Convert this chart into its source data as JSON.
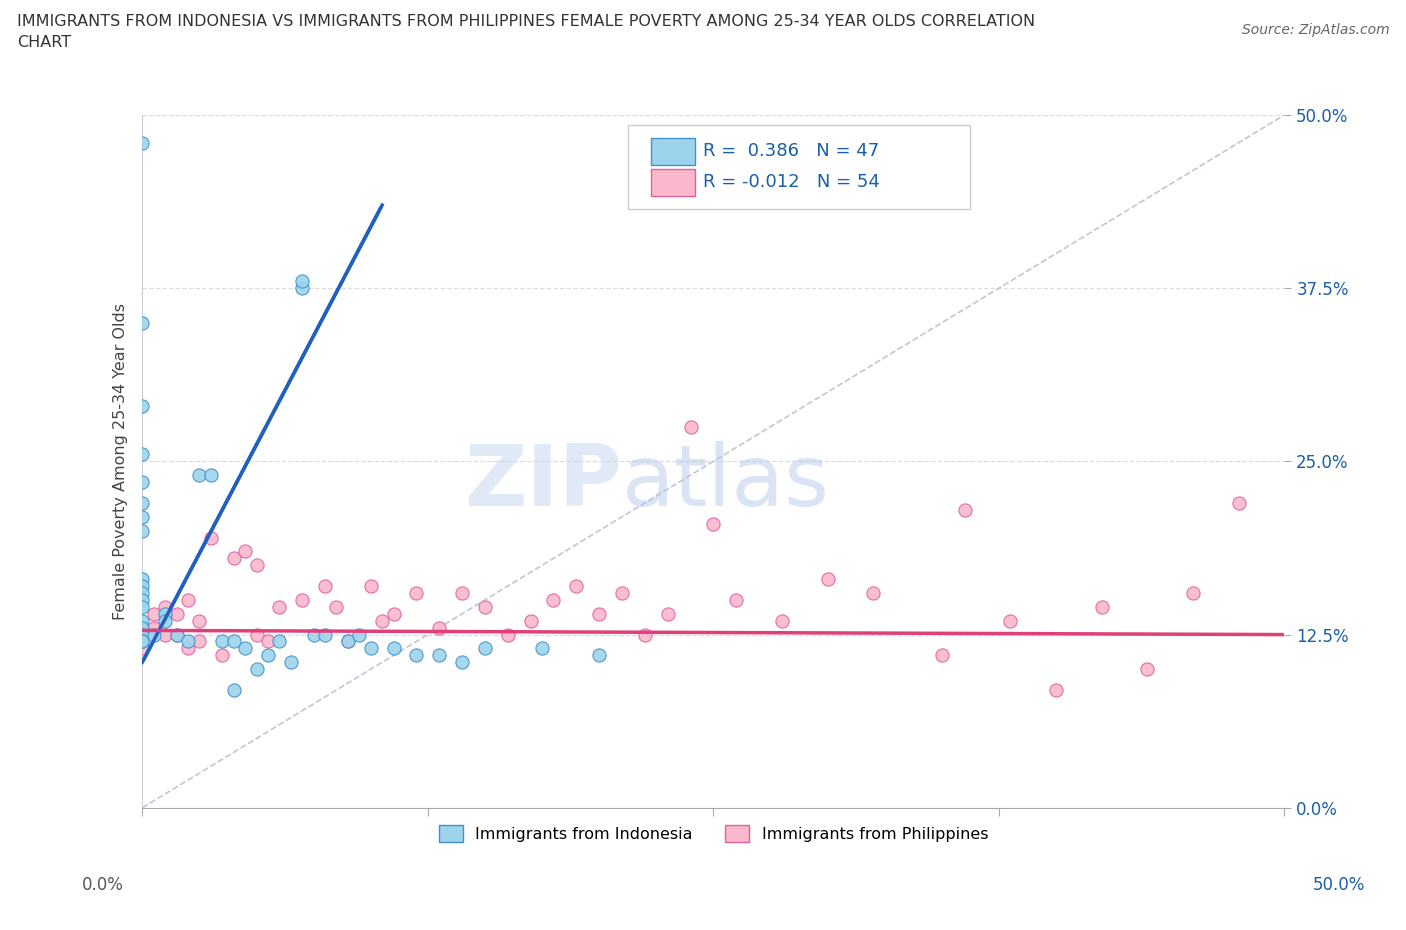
{
  "title": "IMMIGRANTS FROM INDONESIA VS IMMIGRANTS FROM PHILIPPINES FEMALE POVERTY AMONG 25-34 YEAR OLDS CORRELATION\nCHART",
  "source": "Source: ZipAtlas.com",
  "ylabel": "Female Poverty Among 25-34 Year Olds",
  "ytick_vals": [
    0,
    12.5,
    25.0,
    37.5,
    50.0
  ],
  "xlim": [
    0,
    50
  ],
  "ylim": [
    0,
    50
  ],
  "r_indonesia": 0.386,
  "n_indonesia": 47,
  "r_philippines": -0.012,
  "n_philippines": 54,
  "color_indonesia": "#9DD4EC",
  "color_philippines": "#F9B8CC",
  "color_indonesia_line": "#2060C0",
  "color_philippines_line": "#E0407A",
  "watermark_zip": "ZIP",
  "watermark_atlas": "atlas",
  "indo_line_x0": 0.0,
  "indo_line_y0": 10.5,
  "indo_line_x1": 10.5,
  "indo_line_y1": 43.5,
  "phil_line_x0": 0.0,
  "phil_line_y0": 12.8,
  "phil_line_x1": 50.0,
  "phil_line_y1": 12.5,
  "diag_line": true,
  "indonesia_x": [
    0.0,
    0.0,
    0.0,
    0.0,
    0.0,
    0.0,
    0.0,
    0.0,
    0.0,
    0.0,
    0.0,
    0.0,
    0.0,
    0.0,
    0.0,
    0.0,
    0.0,
    0.0,
    0.5,
    1.0,
    1.0,
    1.5,
    2.0,
    2.5,
    3.0,
    3.5,
    4.0,
    4.0,
    4.5,
    5.0,
    5.5,
    6.0,
    6.5,
    7.0,
    7.0,
    7.5,
    8.0,
    9.0,
    9.5,
    10.0,
    11.0,
    12.0,
    13.0,
    14.0,
    15.0,
    17.5,
    20.0
  ],
  "indonesia_y": [
    48.0,
    35.0,
    29.0,
    25.5,
    23.5,
    22.0,
    21.0,
    20.0,
    16.5,
    16.0,
    15.5,
    15.0,
    14.5,
    13.5,
    13.0,
    12.5,
    12.0,
    12.0,
    12.5,
    14.0,
    13.5,
    12.5,
    12.0,
    24.0,
    24.0,
    12.0,
    8.5,
    12.0,
    11.5,
    10.0,
    11.0,
    12.0,
    10.5,
    37.5,
    38.0,
    12.5,
    12.5,
    12.0,
    12.5,
    11.5,
    11.5,
    11.0,
    11.0,
    10.5,
    11.5,
    11.5,
    11.0
  ],
  "philippines_x": [
    0.0,
    0.0,
    0.0,
    0.5,
    0.5,
    1.0,
    1.0,
    1.5,
    1.5,
    2.0,
    2.0,
    2.5,
    2.5,
    3.0,
    3.5,
    4.0,
    4.5,
    5.0,
    5.0,
    5.5,
    6.0,
    7.0,
    8.0,
    8.5,
    9.0,
    10.0,
    10.5,
    11.0,
    12.0,
    13.0,
    14.0,
    15.0,
    16.0,
    17.0,
    18.0,
    19.0,
    20.0,
    21.0,
    22.0,
    23.0,
    24.0,
    25.0,
    26.0,
    28.0,
    30.0,
    32.0,
    35.0,
    36.0,
    38.0,
    40.0,
    42.0,
    44.0,
    46.0,
    48.0
  ],
  "philippines_y": [
    13.0,
    12.5,
    11.5,
    14.0,
    13.0,
    14.5,
    12.5,
    14.0,
    12.5,
    15.0,
    11.5,
    13.5,
    12.0,
    19.5,
    11.0,
    18.0,
    18.5,
    17.5,
    12.5,
    12.0,
    14.5,
    15.0,
    16.0,
    14.5,
    12.0,
    16.0,
    13.5,
    14.0,
    15.5,
    13.0,
    15.5,
    14.5,
    12.5,
    13.5,
    15.0,
    16.0,
    14.0,
    15.5,
    12.5,
    14.0,
    27.5,
    20.5,
    15.0,
    13.5,
    16.5,
    15.5,
    11.0,
    21.5,
    13.5,
    8.5,
    14.5,
    10.0,
    15.5,
    22.0
  ]
}
